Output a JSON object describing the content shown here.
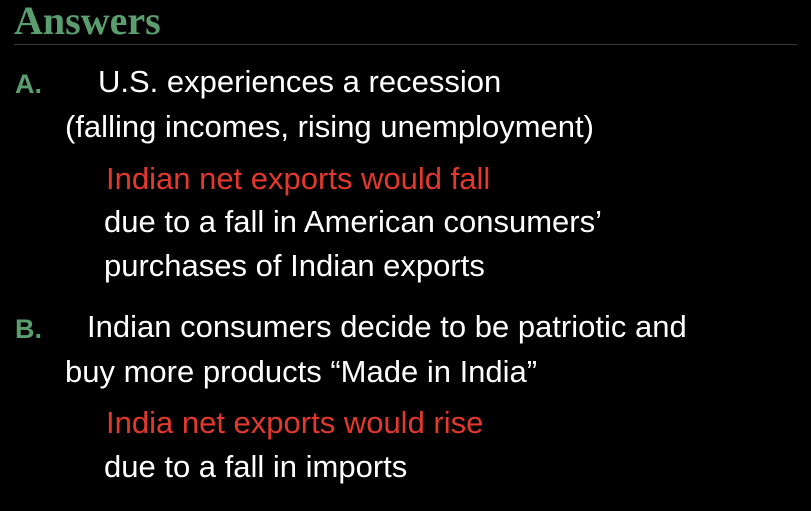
{
  "slide": {
    "title": "Answers",
    "items": [
      {
        "marker": "A.",
        "question_line1": "U.S. experiences a recession",
        "question_line2": "(falling incomes, rising unemployment)",
        "answer": "Indian net exports would fall",
        "explanation_line1": "due to a fall in American consumers’",
        "explanation_line2": "purchases of Indian exports"
      },
      {
        "marker": "B.",
        "question_line1": "Indian consumers decide to be patriotic and",
        "question_line2": "buy more products “Made in India”",
        "answer": "India net exports would rise",
        "explanation_line1": "due to a fall in imports"
      }
    ]
  },
  "colors": {
    "background": "#000000",
    "title": "#5a9e6f",
    "marker": "#5a9e6f",
    "answer": "#e2382d",
    "body_text": "#ffffff"
  }
}
